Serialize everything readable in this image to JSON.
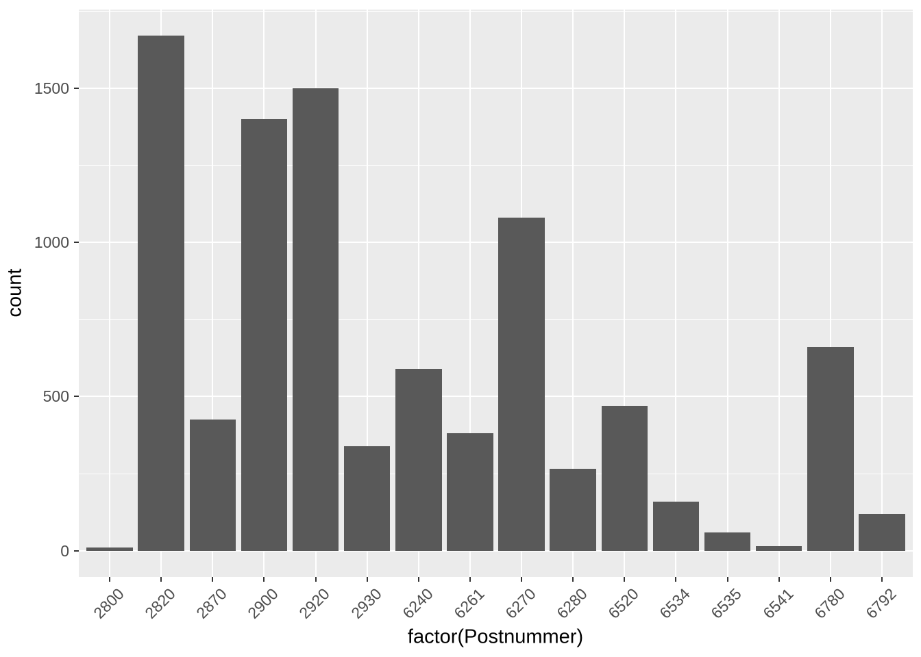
{
  "chart_data": {
    "type": "bar",
    "title": "",
    "xlabel": "factor(Postnummer)",
    "ylabel": "count",
    "categories": [
      "2800",
      "2820",
      "2870",
      "2900",
      "2920",
      "2930",
      "6240",
      "6261",
      "6270",
      "6280",
      "6520",
      "6534",
      "6535",
      "6541",
      "6780",
      "6792"
    ],
    "values": [
      10,
      1670,
      425,
      1400,
      1500,
      340,
      590,
      380,
      1080,
      265,
      470,
      160,
      60,
      15,
      660,
      120
    ],
    "y_ticks": [
      0,
      500,
      1000,
      1500
    ],
    "y_tick_labels": [
      "0",
      "500",
      "1000",
      "1500"
    ],
    "y_minor_ticks": [
      250,
      750,
      1250,
      1750
    ],
    "ylim": [
      -85,
      1755
    ],
    "bar_rel_width": 0.9,
    "grid": true,
    "legend": false,
    "x_tick_rotation": 45,
    "colors": {
      "bar_fill": "#595959",
      "panel_bg": "#EBEBEB",
      "grid": "#FFFFFF",
      "axis_text": "#4D4D4D",
      "axis_title": "#000000",
      "tick_mark": "#333333",
      "background": "#FFFFFF"
    }
  }
}
